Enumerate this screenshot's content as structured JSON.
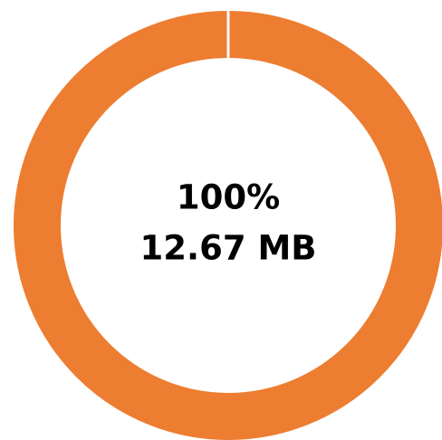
{
  "chart_data": {
    "type": "donut",
    "values": [
      100
    ],
    "value_labels": [
      "100%"
    ],
    "color": "#ed7d31",
    "annotation": "12.67 MB"
  }
}
